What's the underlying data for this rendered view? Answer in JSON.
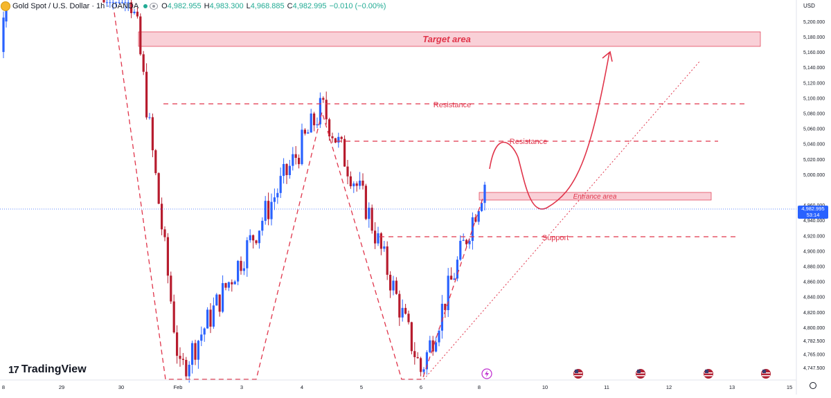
{
  "header": {
    "symbol_title": "Gold Spot / U.S. Dollar · 1h · OANDA",
    "open": "4,982.955",
    "high": "4,983.300",
    "low": "4,968.885",
    "close": "4,982.995",
    "change": "−0.010 (−0.00%)",
    "open_key": "O",
    "high_key": "H",
    "low_key": "L",
    "close_key": "C"
  },
  "branding": {
    "logo_text": "TradingView",
    "logo_mark": "17"
  },
  "price_axis": {
    "currency": "USD",
    "current_price": "4,982.995",
    "countdown": "53:14",
    "tick_labels": [
      "5,200.000",
      "5,180.000",
      "5,160.000",
      "5,140.000",
      "5,120.000",
      "5,100.000",
      "5,080.000",
      "5,060.000",
      "5,040.000",
      "5,020.000",
      "5,000.000",
      "4,960.000",
      "4,940.000",
      "4,920.000",
      "4,900.000",
      "4,880.000",
      "4,860.000",
      "4,840.000",
      "4,820.000",
      "4,800.000",
      "4,782.500",
      "4,765.000",
      "4,747.500"
    ]
  },
  "colors": {
    "bull": "#2962ff",
    "bear": "#b71c2e",
    "annotation": "#e0344a",
    "zone_fill": "#f8c4cd",
    "price_line": "#2962ff",
    "accent_brand": "#f5b72e"
  },
  "event_icons": [
    {
      "name": "flash-event-icon",
      "x": "8"
    },
    {
      "name": "us-flag-icon",
      "x": "10"
    },
    {
      "name": "us-flag-icon",
      "x": "11"
    },
    {
      "name": "us-flag-icon",
      "x": "12"
    },
    {
      "name": "us-flag-icon",
      "x": "13"
    }
  ],
  "chart_data": {
    "type": "candlestick",
    "x_tick_labels": [
      "8",
      "29",
      "30",
      "Feb",
      "3",
      "4",
      "5",
      "6",
      "8",
      "10",
      "11",
      "12",
      "13",
      "15"
    ],
    "y_axis": {
      "scale": "linear",
      "range": [
        4732,
        5228
      ]
    },
    "current_price": 4982.995,
    "ohlc_last": {
      "open": 4982.955,
      "high": 4983.3,
      "low": 4968.885,
      "close": 4982.995
    },
    "trend_path": [
      {
        "x": "Jan 28",
        "price": 5380
      },
      {
        "x": "Jan 30",
        "price": 5190
      },
      {
        "x": "Feb 2",
        "price": 4740
      },
      {
        "x": "Feb 4",
        "price": 5088
      },
      {
        "x": "Feb 5",
        "price": 4955
      },
      {
        "x": "Feb 6",
        "price": 4742
      },
      {
        "x": "Feb 8",
        "price": 4990
      }
    ],
    "annotations": {
      "target_area": {
        "label": "Target area",
        "price_low": 5179,
        "price_high": 5203
      },
      "resistance_1": {
        "label": "Resistance",
        "price": 5100
      },
      "resistance_2": {
        "label": "Resistance",
        "price": 5050
      },
      "entrance_area": {
        "label": "Entrance area",
        "price_low": 4967,
        "price_high": 4980
      },
      "support": {
        "label": "Support",
        "price": 4919
      }
    }
  }
}
